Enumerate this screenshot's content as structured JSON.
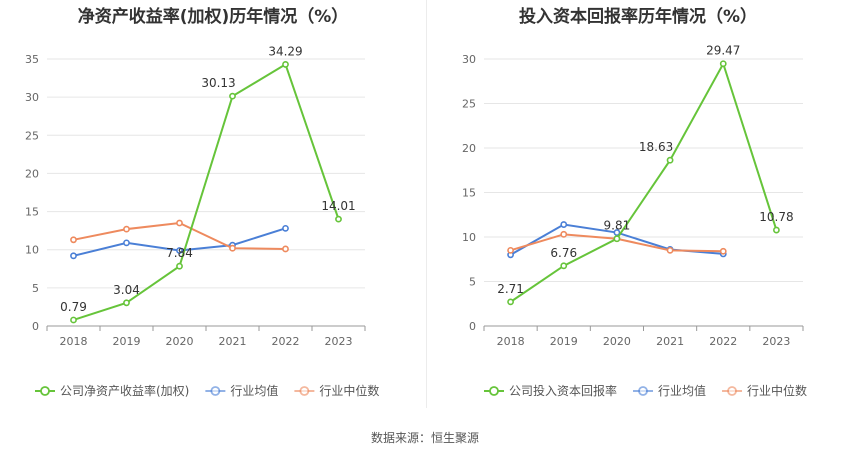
{
  "chart_data": [
    {
      "type": "line",
      "title": "净资产收益率(加权)历年情况（%）",
      "categories": [
        "2018",
        "2019",
        "2020",
        "2021",
        "2022",
        "2023"
      ],
      "ylim": [
        0,
        35
      ],
      "yticks": [
        0,
        5,
        10,
        15,
        20,
        25,
        30,
        35
      ],
      "grid": true,
      "legend_position": "bottom",
      "series": [
        {
          "name": "公司净资产收益率(加权)",
          "color": "#66c43a",
          "values": [
            0.79,
            3.04,
            7.84,
            30.13,
            34.29,
            14.01
          ],
          "labels": [
            "0.79",
            "3.04",
            "7.84",
            "30.13",
            "34.29",
            "14.01"
          ]
        },
        {
          "name": "行业均值",
          "color": "#4a7fd6",
          "values": [
            9.2,
            10.9,
            9.9,
            10.6,
            12.8,
            null
          ]
        },
        {
          "name": "行业中位数",
          "color": "#ee8a5e",
          "values": [
            11.3,
            12.7,
            13.5,
            10.2,
            10.1,
            null
          ]
        }
      ]
    },
    {
      "type": "line",
      "title": "投入资本回报率历年情况（%）",
      "categories": [
        "2018",
        "2019",
        "2020",
        "2021",
        "2022",
        "2023"
      ],
      "ylim": [
        0,
        30
      ],
      "yticks": [
        0,
        5,
        10,
        15,
        20,
        25,
        30
      ],
      "grid": true,
      "legend_position": "bottom",
      "series": [
        {
          "name": "公司投入资本回报率",
          "color": "#66c43a",
          "values": [
            2.71,
            6.76,
            9.81,
            18.63,
            29.47,
            10.78
          ],
          "labels": [
            "2.71",
            "6.76",
            "9.81",
            "18.63",
            "29.47",
            "10.78"
          ]
        },
        {
          "name": "行业均值",
          "color": "#4a7fd6",
          "values": [
            8.0,
            11.4,
            10.5,
            8.6,
            8.1,
            null
          ]
        },
        {
          "name": "行业中位数",
          "color": "#ee8a5e",
          "values": [
            8.5,
            10.3,
            9.8,
            8.5,
            8.4,
            null
          ]
        }
      ]
    }
  ],
  "footer": {
    "source": "数据来源：恒生聚源"
  }
}
